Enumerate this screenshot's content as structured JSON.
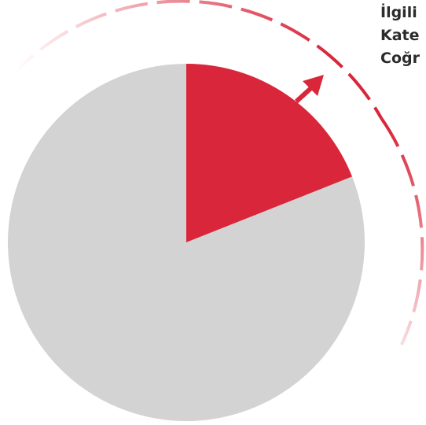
{
  "side_text": {
    "line1": "İlgili",
    "line2": "Kate",
    "line3": "Coğr"
  },
  "colors": {
    "accent": "#d9263a",
    "base": "#d3d3d3",
    "text": "#2b2b2b"
  },
  "chart_data": {
    "type": "pie",
    "title": "",
    "slices": [
      {
        "value": 19,
        "color": "#d9263a",
        "highlighted": true
      },
      {
        "value": 81,
        "color": "#d3d3d3",
        "highlighted": false
      }
    ],
    "start_angle_deg": 0,
    "legend": "none",
    "annotation": "outward arrow and dashed arc pointing from the highlighted slice"
  }
}
